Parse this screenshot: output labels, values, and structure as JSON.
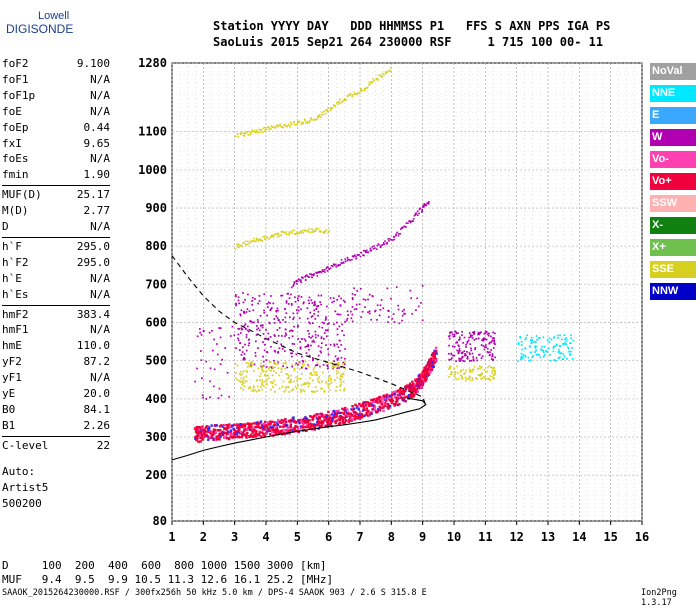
{
  "logo": {
    "line1": "Lowell",
    "line2": "DIGISONDE"
  },
  "header": {
    "line1": "Station YYYY DAY   DDD HHMMSS P1   FFS S AXN PPS IGA PS",
    "line2": "SaoLuis 2015 Sep21 264 230000 RSF     1 715 100 00- 11"
  },
  "params": [
    {
      "k": "foF2",
      "v": "9.100"
    },
    {
      "k": "foF1",
      "v": "N/A"
    },
    {
      "k": "foF1p",
      "v": "N/A"
    },
    {
      "k": "foE",
      "v": "N/A"
    },
    {
      "k": "foEp",
      "v": "0.44"
    },
    {
      "k": "fxI",
      "v": "9.65"
    },
    {
      "k": "foEs",
      "v": "N/A"
    },
    {
      "k": "fmin",
      "v": "1.90"
    },
    {
      "k": "MUF(D)",
      "v": "25.17"
    },
    {
      "k": "M(D)",
      "v": "2.77"
    },
    {
      "k": "D",
      "v": "N/A"
    },
    {
      "k": "h`F",
      "v": "295.0"
    },
    {
      "k": "h`F2",
      "v": "295.0"
    },
    {
      "k": "h`E",
      "v": "N/A"
    },
    {
      "k": "h`Es",
      "v": "N/A"
    },
    {
      "k": "hmF2",
      "v": "383.4"
    },
    {
      "k": "hmF1",
      "v": "N/A"
    },
    {
      "k": "hmE",
      "v": "110.0"
    },
    {
      "k": "yF2",
      "v": "87.2"
    },
    {
      "k": "yF1",
      "v": "N/A"
    },
    {
      "k": "yE",
      "v": "20.0"
    },
    {
      "k": "B0",
      "v": "84.1"
    },
    {
      "k": "B1",
      "v": "2.26"
    },
    {
      "k": "C-level",
      "v": "22"
    }
  ],
  "auto": [
    "Auto:",
    "Artist5",
    "500200"
  ],
  "legend": [
    {
      "label": "NoVal",
      "color": "#a0a0a0"
    },
    {
      "label": "NNE",
      "color": "#00e8ff"
    },
    {
      "label": "E",
      "color": "#3aa8ff"
    },
    {
      "label": "W",
      "color": "#b000b0"
    },
    {
      "label": "Vo-",
      "color": "#ff40b0"
    },
    {
      "label": "Vo+",
      "color": "#f0003c"
    },
    {
      "label": "SSW",
      "color": "#ffb0b0"
    },
    {
      "label": "X-",
      "color": "#108010"
    },
    {
      "label": "X+",
      "color": "#70c050"
    },
    {
      "label": "SSE",
      "color": "#d8d020"
    },
    {
      "label": "NNW",
      "color": "#0000c8"
    }
  ],
  "footer": {
    "d_line": "D     100  200  400  600  800 1000 1500 3000 [km]",
    "muf_line": "MUF   9.4  9.5  9.9 10.5 11.3 12.6 16.1 25.2 [MHz]",
    "filename": "SAAOK_2015264230000.RSF / 300fx256h 50 kHz 5.0 km / DPS-4 SAAOK 903 / 2.6 S 315.8 E",
    "version": "Ion2Png 1.3.17"
  },
  "chart_data": {
    "type": "scatter",
    "xlim": [
      1,
      16
    ],
    "ylim": [
      80,
      1280
    ],
    "x_ticks": [
      "1",
      "2",
      "3",
      "4",
      "5",
      "6",
      "7",
      "8",
      "9",
      "10",
      "11",
      "12",
      "13",
      "14",
      "15",
      "16"
    ],
    "y_ticks": [
      "80",
      "200",
      "300",
      "400",
      "500",
      "600",
      "700",
      "800",
      "900",
      "1000",
      "1100",
      "1280"
    ],
    "grid": true,
    "traces": [
      {
        "name": "Vo+",
        "color": "#f0003c",
        "points": [
          [
            1.7,
            310
          ],
          [
            2.0,
            312
          ],
          [
            2.5,
            315
          ],
          [
            3.0,
            318
          ],
          [
            3.5,
            322
          ],
          [
            4.0,
            325
          ],
          [
            4.5,
            330
          ],
          [
            5.0,
            336
          ],
          [
            5.5,
            342
          ],
          [
            6.0,
            350
          ],
          [
            6.5,
            360
          ],
          [
            7.0,
            372
          ],
          [
            7.5,
            385
          ],
          [
            8.0,
            400
          ],
          [
            8.5,
            420
          ],
          [
            8.8,
            440
          ],
          [
            9.0,
            460
          ],
          [
            9.2,
            490
          ],
          [
            9.4,
            520
          ]
        ]
      },
      {
        "name": "SSE",
        "color": "#d8d020",
        "points": [
          [
            3.0,
            1090
          ],
          [
            3.5,
            1100
          ],
          [
            4.0,
            1108
          ],
          [
            4.5,
            1118
          ],
          [
            5.0,
            1125
          ],
          [
            5.5,
            1135
          ],
          [
            6.0,
            1160
          ],
          [
            6.5,
            1190
          ],
          [
            7.0,
            1210
          ],
          [
            7.5,
            1240
          ],
          [
            8.0,
            1270
          ]
        ]
      },
      {
        "name": "W",
        "color": "#b000b0",
        "points": [
          [
            4.8,
            700
          ],
          [
            5.2,
            718
          ],
          [
            5.6,
            730
          ],
          [
            6.0,
            745
          ],
          [
            6.5,
            765
          ],
          [
            7.0,
            780
          ],
          [
            7.5,
            800
          ],
          [
            8.0,
            820
          ],
          [
            8.5,
            860
          ],
          [
            8.9,
            895
          ],
          [
            9.2,
            920
          ]
        ]
      },
      {
        "name": "SSE",
        "color": "#d8d020",
        "points": [
          [
            3.0,
            800
          ],
          [
            3.5,
            815
          ],
          [
            4.0,
            825
          ],
          [
            4.5,
            835
          ],
          [
            5.0,
            840
          ],
          [
            5.5,
            845
          ],
          [
            6.0,
            838
          ]
        ]
      }
    ],
    "profile": [
      [
        1,
        240
      ],
      [
        1.5,
        252
      ],
      [
        2,
        265
      ],
      [
        2.5,
        275
      ],
      [
        3,
        284
      ],
      [
        3.5,
        292
      ],
      [
        4,
        300
      ],
      [
        4.5,
        308
      ],
      [
        5,
        315
      ],
      [
        5.5,
        321
      ],
      [
        6,
        327
      ],
      [
        6.5,
        332
      ],
      [
        7,
        338
      ],
      [
        7.5,
        345
      ],
      [
        8,
        355
      ],
      [
        8.5,
        366
      ],
      [
        8.9,
        374
      ],
      [
        9.1,
        385
      ],
      [
        9.0,
        395
      ],
      [
        8.5,
        402
      ]
    ],
    "extrapolated": [
      [
        1,
        775
      ],
      [
        1.5,
        720
      ],
      [
        2,
        670
      ],
      [
        2.5,
        630
      ],
      [
        3,
        600
      ],
      [
        3.5,
        580
      ],
      [
        4,
        558
      ],
      [
        5,
        520
      ],
      [
        6,
        495
      ],
      [
        7,
        470
      ],
      [
        8,
        440
      ],
      [
        9,
        405
      ],
      [
        9.1,
        383
      ]
    ]
  }
}
